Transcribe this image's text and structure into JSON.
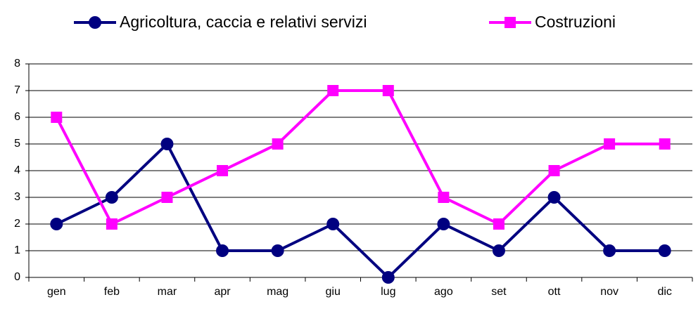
{
  "chart_data": {
    "type": "line",
    "categories": [
      "gen",
      "feb",
      "mar",
      "apr",
      "mag",
      "giu",
      "lug",
      "ago",
      "set",
      "ott",
      "nov",
      "dic"
    ],
    "series": [
      {
        "name": "Agricoltura, caccia e relativi servizi",
        "color": "#000080",
        "marker": "circle",
        "values": [
          2,
          3,
          5,
          1,
          1,
          2,
          0,
          2,
          1,
          3,
          1,
          1
        ]
      },
      {
        "name": "Costruzioni",
        "color": "#ff00ff",
        "marker": "square",
        "values": [
          6,
          2,
          3,
          4,
          5,
          7,
          7,
          3,
          2,
          4,
          5,
          5
        ]
      }
    ],
    "ylim": [
      0,
      8
    ],
    "yticks": [
      0,
      1,
      2,
      3,
      4,
      5,
      6,
      7,
      8
    ],
    "grid": true,
    "legend": "top"
  }
}
